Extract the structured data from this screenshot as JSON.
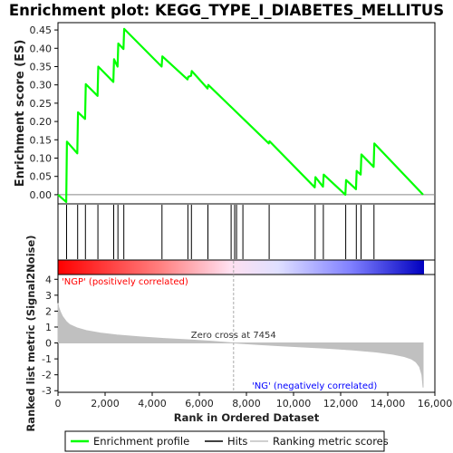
{
  "chart_data": {
    "type": "line",
    "title": "Enrichment plot: KEGG_TYPE_I_DIABETES_MELLITUS",
    "top_panel": {
      "ylabel": "Enrichment score (ES)",
      "ylim": [
        -0.025,
        0.47
      ],
      "yticks": [
        0.0,
        0.05,
        0.1,
        0.15,
        0.2,
        0.25,
        0.3,
        0.35,
        0.4,
        0.45
      ],
      "ytick_labels": [
        "0.00",
        "0.05",
        "0.10",
        "0.15",
        "0.20",
        "0.25",
        "0.30",
        "0.35",
        "0.40",
        "0.45"
      ],
      "series": [
        {
          "name": "Enrichment profile",
          "color": "#00ff00",
          "x": [
            0,
            350,
            380,
            820,
            850,
            1150,
            1180,
            1680,
            1710,
            2350,
            2380,
            2530,
            2560,
            2780,
            2810,
            4400,
            4430,
            5500,
            5530,
            5650,
            5680,
            6350,
            6380,
            8950,
            8980,
            10900,
            10930,
            11250,
            11280,
            12200,
            12230,
            12650,
            12680,
            12850,
            12880,
            13400,
            13430,
            15500
          ],
          "y": [
            0.0,
            -0.02,
            0.145,
            0.113,
            0.225,
            0.207,
            0.302,
            0.27,
            0.35,
            0.308,
            0.37,
            0.35,
            0.413,
            0.398,
            0.453,
            0.35,
            0.378,
            0.315,
            0.322,
            0.325,
            0.338,
            0.29,
            0.3,
            0.14,
            0.146,
            0.02,
            0.048,
            0.022,
            0.055,
            0.0,
            0.04,
            0.015,
            0.065,
            0.055,
            0.11,
            0.076,
            0.14,
            0.0
          ]
        }
      ]
    },
    "hits": {
      "name": "Hits",
      "positions": [
        365,
        835,
        1165,
        1695,
        2365,
        2545,
        2795,
        4415,
        5515,
        5665,
        6365,
        7350,
        7500,
        7580,
        7850,
        8965,
        10915,
        11265,
        12215,
        12665,
        12865,
        13415
      ]
    },
    "bottom_panel": {
      "ylabel": "Ranked list metric (Signal2Noise)",
      "xlabel": "Rank in Ordered Dataset",
      "ylim": [
        -3.1,
        4.3
      ],
      "yticks": [
        4,
        3,
        2,
        1,
        0,
        -1,
        -2,
        -3
      ],
      "xlim": [
        0,
        16000
      ],
      "xticks": [
        0,
        2000,
        4000,
        6000,
        8000,
        10000,
        12000,
        14000,
        16000
      ],
      "xtick_labels": [
        "0",
        "2,000",
        "4,000",
        "6,000",
        "8,000",
        "10,000",
        "12,000",
        "14,000",
        "16,000"
      ],
      "series": [
        {
          "name": "Ranking metric scores",
          "color": "#c0c0c0",
          "x": [
            0,
            30,
            100,
            200,
            350,
            500,
            800,
            1200,
            1800,
            2500,
            3500,
            4500,
            5500,
            6500,
            7454,
            8500,
            9500,
            10500,
            11500,
            12500,
            13500,
            14200,
            14700,
            15000,
            15200,
            15350,
            15450,
            15500
          ],
          "y": [
            2.5,
            2.25,
            1.95,
            1.65,
            1.35,
            1.15,
            0.95,
            0.78,
            0.62,
            0.5,
            0.38,
            0.28,
            0.2,
            0.11,
            0.0,
            -0.1,
            -0.18,
            -0.26,
            -0.34,
            -0.44,
            -0.57,
            -0.7,
            -0.85,
            -1.0,
            -1.2,
            -1.5,
            -2.0,
            -2.8
          ]
        }
      ],
      "annotations": {
        "positive": "'NGP' (positively correlated)",
        "negative": "'NG' (negatively correlated)",
        "zero_cross": "Zero cross at 7454",
        "zero_cross_at": 7454,
        "positive_color": "#ff0000",
        "negative_color": "#0000ff"
      }
    },
    "legend": {
      "placement": "bottom",
      "items": [
        {
          "label": "Enrichment profile",
          "color": "#00ff00"
        },
        {
          "label": "Hits",
          "color": "#000000"
        },
        {
          "label": "Ranking metric scores",
          "color": "#c0c0c0"
        }
      ]
    }
  }
}
